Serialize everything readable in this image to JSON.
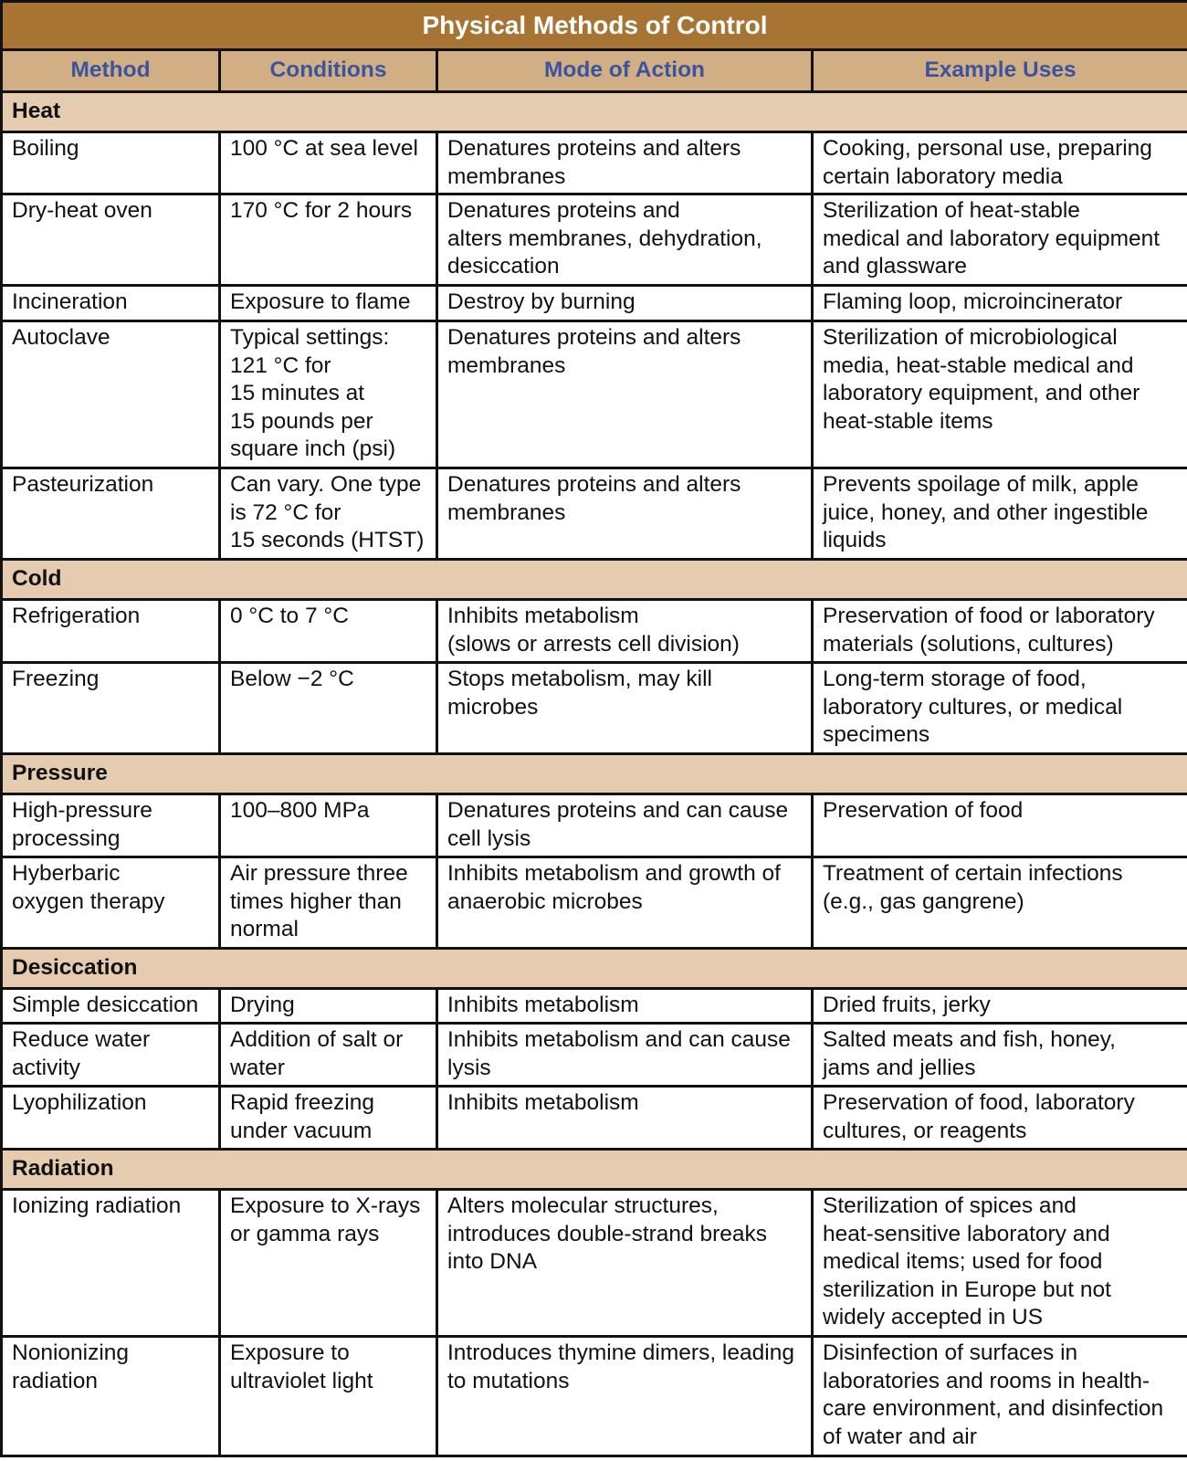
{
  "title": "Physical Methods of Control",
  "columns": [
    "Method",
    "Conditions",
    "Mode of Action",
    "Example Uses"
  ],
  "colors": {
    "title_bg": "#a87434",
    "header_bg": "#d2ae84",
    "category_bg": "#e5ccb0",
    "header_text": "#3b54a0"
  },
  "groups": [
    {
      "category": "Heat",
      "rows": [
        [
          "Boiling",
          "100 °C at sea level",
          "Denatures proteins and alters\nmembranes",
          "Cooking, personal use, preparing\ncertain laboratory media"
        ],
        [
          "Dry-heat oven",
          "170 °C for 2 hours",
          "Denatures proteins and\nalters membranes, dehydration,\ndesiccation",
          "Sterilization of heat-stable\nmedical and laboratory equipment\nand glassware"
        ],
        [
          "Incineration",
          "Exposure to flame",
          "Destroy by burning",
          "Flaming loop, microincinerator"
        ],
        [
          "Autoclave",
          "Typical settings:\n121 °C for\n15 minutes at\n15 pounds per\nsquare inch (psi)",
          "Denatures proteins and alters\nmembranes",
          "Sterilization of microbiological\nmedia, heat-stable medical and\nlaboratory equipment, and other\nheat-stable items"
        ],
        [
          "Pasteurization",
          "Can vary. One type\nis 72 °C for\n15 seconds (HTST)",
          "Denatures proteins and alters\nmembranes",
          "Prevents spoilage of milk, apple\njuice, honey, and other ingestible\nliquids"
        ]
      ]
    },
    {
      "category": "Cold",
      "rows": [
        [
          "Refrigeration",
          "0 °C to 7 °C",
          "Inhibits metabolism\n(slows or arrests cell division)",
          "Preservation of food or laboratory\nmaterials (solutions, cultures)"
        ],
        [
          "Freezing",
          "Below −2 °C",
          "Stops metabolism, may kill\nmicrobes",
          "Long-term storage of food,\nlaboratory cultures, or medical\nspecimens"
        ]
      ]
    },
    {
      "category": "Pressure",
      "rows": [
        [
          "High-pressure\nprocessing",
          "100–800 MPa",
          "Denatures proteins and can cause\ncell lysis",
          "Preservation of food"
        ],
        [
          "Hyberbaric\noxygen therapy",
          "Air pressure three\ntimes higher than\nnormal",
          "Inhibits metabolism and growth of\nanaerobic microbes",
          "Treatment of certain infections\n(e.g., gas gangrene)"
        ]
      ]
    },
    {
      "category": "Desiccation",
      "rows": [
        [
          "Simple desiccation",
          "Drying",
          "Inhibits metabolism",
          "Dried fruits, jerky"
        ],
        [
          "Reduce water\nactivity",
          "Addition of salt or\nwater",
          "Inhibits metabolism and can cause\nlysis",
          "Salted meats and fish, honey,\njams and jellies"
        ],
        [
          "Lyophilization",
          "Rapid freezing\nunder vacuum",
          "Inhibits metabolism",
          "Preservation of food, laboratory\ncultures, or reagents"
        ]
      ]
    },
    {
      "category": "Radiation",
      "rows": [
        [
          "Ionizing radiation",
          "Exposure to X-rays\nor gamma rays",
          "Alters molecular structures,\nintroduces double-strand breaks\ninto DNA",
          "Sterilization of spices and\nheat-sensitive laboratory and\nmedical items; used for food\nsterilization in Europe but not\nwidely accepted in US"
        ],
        [
          "Nonionizing\nradiation",
          "Exposure to\nultraviolet light",
          "Introduces thymine dimers, leading\nto mutations",
          "Disinfection of surfaces in\nlaboratories and rooms in health-\ncare environment, and disinfection\nof water and air"
        ]
      ]
    }
  ]
}
